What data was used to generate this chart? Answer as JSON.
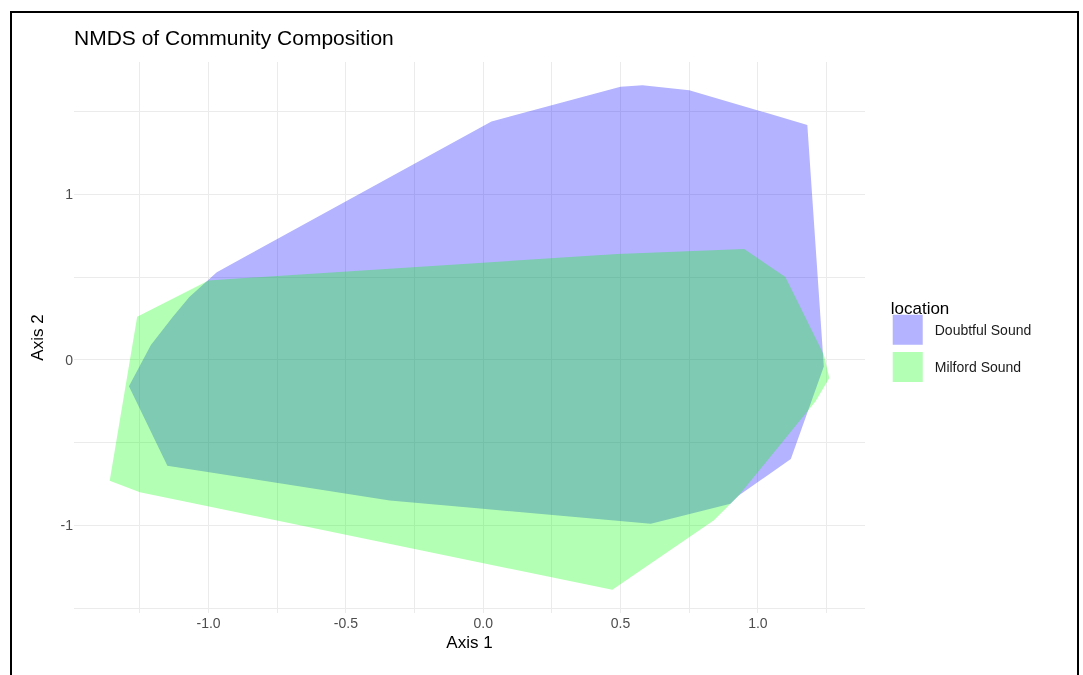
{
  "chart_data": {
    "type": "area",
    "title": "NMDS of Community Composition",
    "xlabel": "Axis 1",
    "ylabel": "Axis 2",
    "legend_title": "location",
    "series": [
      {
        "name": "Doubtful Sound",
        "color": "#b3b3ff",
        "x": [
          -0.97,
          0.03,
          0.5,
          0.58,
          0.75,
          1.18,
          1.24,
          1.12,
          0.93,
          0.9,
          0.61,
          -0.34,
          -1.15,
          -1.29,
          -1.21,
          -1.13,
          -1.07
        ],
        "values": [
          0.53,
          1.44,
          1.65,
          1.66,
          1.63,
          1.42,
          -0.04,
          -0.6,
          -0.82,
          -0.87,
          -0.99,
          -0.85,
          -0.64,
          -0.16,
          0.09,
          0.26,
          0.38
        ]
      },
      {
        "name": "Milford Sound",
        "color": "#b3ffb3",
        "x": [
          -1.26,
          -1.0,
          0.49,
          0.95,
          1.1,
          1.24,
          1.26,
          1.21,
          0.93,
          0.84,
          0.47,
          -1.25,
          -1.36
        ],
        "values": [
          0.26,
          0.48,
          0.64,
          0.67,
          0.5,
          0.03,
          -0.11,
          -0.25,
          -0.82,
          -0.97,
          -1.39,
          -0.8,
          -0.73
        ]
      }
    ],
    "xlim": [
      -1.49,
      1.39
    ],
    "ylim": [
      -1.53,
      1.8
    ],
    "xticks": [
      {
        "value": -1.25,
        "label": null
      },
      {
        "value": -1,
        "label": "-1.0"
      },
      {
        "value": -0.75,
        "label": null
      },
      {
        "value": -0.5,
        "label": "-0.5"
      },
      {
        "value": -0.25,
        "label": null
      },
      {
        "value": 0,
        "label": "0.0"
      },
      {
        "value": 0.25,
        "label": null
      },
      {
        "value": 0.5,
        "label": "0.5"
      },
      {
        "value": 0.75,
        "label": null
      },
      {
        "value": 1,
        "label": "1.0"
      },
      {
        "value": 1.25,
        "label": null
      }
    ],
    "yticks": [
      {
        "value": -1.5,
        "label": null
      },
      -1,
      {
        "value": -0.5,
        "label": null
      },
      0,
      {
        "value": 0.5,
        "label": null
      },
      1,
      {
        "value": 1.5,
        "label": null
      }
    ],
    "grid": true,
    "legend": "right"
  }
}
